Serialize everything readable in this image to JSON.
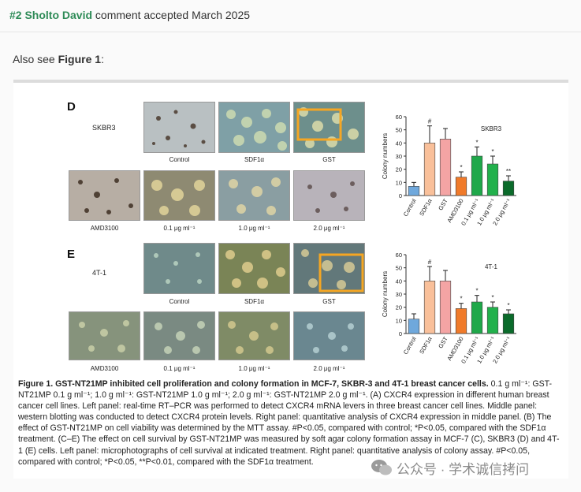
{
  "header": {
    "number": "#2",
    "author": "Sholto David",
    "status": "comment accepted March 2025"
  },
  "also_see": {
    "prefix": "Also see",
    "figure_ref": "Figure 1",
    "suffix": ":"
  },
  "figure": {
    "panel_D": {
      "letter": "D",
      "cell_line": "SKBR3",
      "row1_labels": [
        "Control",
        "SDF1α",
        "GST"
      ],
      "row2_labels": [
        "AMD3100",
        "0.1 μg ml⁻¹",
        "1.0 μg ml⁻¹",
        "2.0 μg ml⁻¹"
      ]
    },
    "panel_E": {
      "letter": "E",
      "cell_line": "4T-1",
      "row1_labels": [
        "Control",
        "SDF1α",
        "GST"
      ],
      "row2_labels": [
        "AMD3100",
        "0.1 μg ml⁻¹",
        "1.0 μg ml⁻¹",
        "2.0 μg ml⁻¹"
      ]
    },
    "caption": {
      "title": "Figure 1. GST-NT21MP inhibited cell proliferation and colony formation in MCF-7, SKBR-3 and 4T-1 breast cancer cells.",
      "body": "0.1 g ml⁻¹: GST-NT21MP 0.1 g ml⁻¹; 1.0 g ml⁻¹: GST-NT21MP 1.0 g ml⁻¹; 2.0 g ml⁻¹: GST-NT21MP 2.0 g ml⁻¹. (A) CXCR4 expression in different human breast cancer cell lines. Left panel: real-time RT–PCR was performed to detect CXCR4 mRNA levers in three breast cancer cell lines. Middle panel: western blotting was conducted to detect CXCR4 protein levels. Right panel: quantitative analysis of CXCR4 expression in middle panel. (B) The effect of GST-NT21MP on cell viability was determined by the MTT assay. #P<0.05, compared with control; *P<0.05, compared with the SDF1α treatment. (C–E) The effect on cell survival by GST-NT21MP was measured by soft agar colony formation assay in MCF-7 (C), SKBR3 (D) and 4T-1 (E) cells. Left panel: microphotographs of cell survival at indicated treatment. Right panel: quantitative analysis of colony assay. #P<0.05, compared with control; *P<0.05, **P<0.01, compared with the SDF1α treatment."
    }
  },
  "chart_data": [
    {
      "type": "bar",
      "title": "SKBR3",
      "ylabel": "Colony numbers",
      "ylim": [
        0,
        60
      ],
      "yticks": [
        0,
        10,
        20,
        30,
        40,
        50,
        60
      ],
      "categories": [
        "Control",
        "SDF1α",
        "GST",
        "AMD3100",
        "0.1 μg ml⁻¹",
        "1.0 μg ml⁻¹",
        "2.0 μg ml⁻¹"
      ],
      "values": [
        7,
        40,
        43,
        14,
        30,
        24,
        11
      ],
      "errors": [
        3,
        13,
        8,
        4,
        7,
        6,
        4
      ],
      "annotations": [
        "",
        "#",
        "",
        "*",
        "*",
        "*",
        "**"
      ],
      "colors": [
        "#6fa8dc",
        "#f9c09a",
        "#f4a4a4",
        "#f07a2a",
        "#1fa84a",
        "#22b14c",
        "#0b6b2b"
      ]
    },
    {
      "type": "bar",
      "title": "4T-1",
      "ylabel": "Colony numbers",
      "ylim": [
        0,
        60
      ],
      "yticks": [
        0,
        10,
        20,
        30,
        40,
        50,
        60
      ],
      "categories": [
        "Control",
        "SDF1α",
        "GST",
        "AMD3100",
        "0.1 μg ml⁻¹",
        "1.0 μg ml⁻¹",
        "2.0 μg ml⁻¹"
      ],
      "values": [
        11,
        40,
        40,
        19,
        24,
        20,
        15
      ],
      "errors": [
        4,
        11,
        8,
        4,
        5,
        4,
        3
      ],
      "annotations": [
        "",
        "#",
        "",
        "*",
        "*",
        "*",
        "*"
      ],
      "colors": [
        "#6fa8dc",
        "#f9c09a",
        "#f4a4a4",
        "#f07a2a",
        "#1fa84a",
        "#22b14c",
        "#0b6b2b"
      ]
    }
  ],
  "watermark": {
    "text": "公众号 · 学术诚信拷问"
  }
}
